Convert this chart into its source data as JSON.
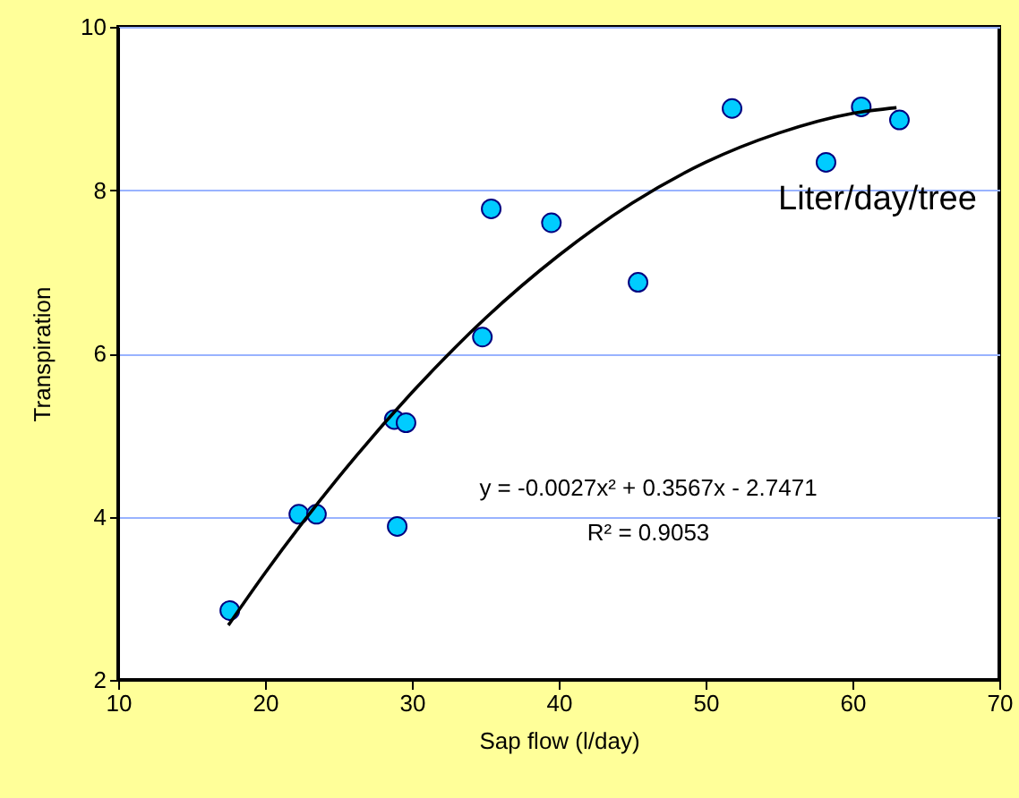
{
  "chart_data": {
    "type": "scatter",
    "xlabel": "Sap flow (l/day)",
    "ylabel": "Transpiration",
    "xlim": [
      10,
      70
    ],
    "xticks": [
      10,
      20,
      30,
      40,
      50,
      60,
      70
    ],
    "ylim": [
      2,
      10
    ],
    "yticks": [
      2,
      4,
      6,
      8,
      10
    ],
    "grid": "y",
    "marker": "circle",
    "annotations": [
      "Liter/day/tree",
      "y = -0.0027x² + 0.3567x - 2.7471",
      "R² = 0.9053"
    ],
    "series": [
      {
        "color": "#00ccff",
        "x": [
          17.6,
          22.3,
          23.5,
          28.8,
          29.6,
          29.0,
          34.8,
          35.4,
          39.5,
          45.4,
          51.8,
          58.2,
          60.6,
          63.2
        ],
        "values": [
          2.85,
          4.03,
          4.03,
          5.19,
          5.15,
          3.88,
          6.2,
          7.77,
          7.6,
          6.87,
          9.0,
          8.34,
          9.02,
          8.86
        ]
      },
      {
        "type": "line",
        "color": "#000000",
        "marker": "none",
        "x": [
          17.5,
          20,
          25,
          30,
          35,
          40,
          45,
          50,
          55,
          60,
          63
        ],
        "values": [
          2.67,
          3.31,
          4.48,
          5.52,
          6.43,
          7.2,
          7.84,
          8.34,
          8.7,
          8.94,
          9.01
        ]
      }
    ]
  }
}
